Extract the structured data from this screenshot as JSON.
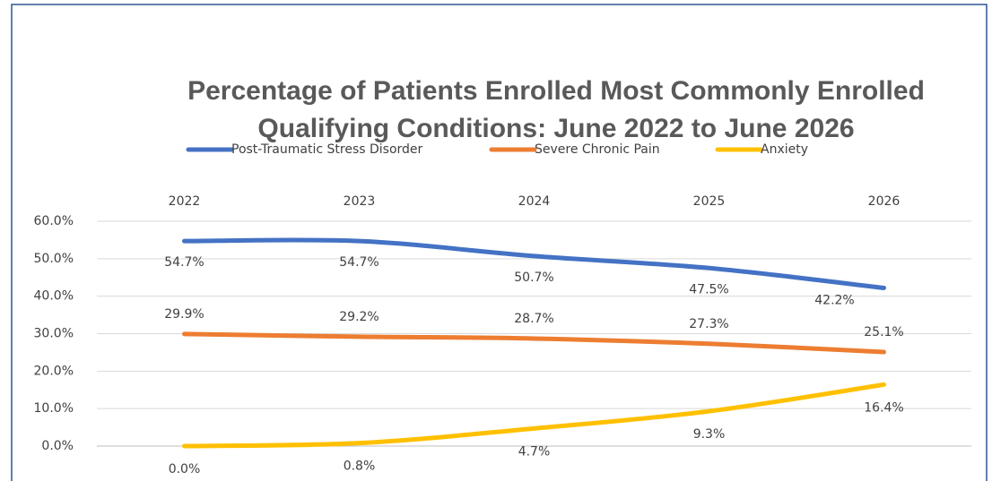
{
  "chart_data": {
    "type": "line",
    "title": "Percentage of Patients Enrolled Most Commonly Enrolled",
    "subtitle": "Qualifying Conditions:  June 2022 to June 2026",
    "categories": [
      "2022",
      "2023",
      "2024",
      "2025",
      "2026"
    ],
    "series": [
      {
        "name": "Post-Traumatic Stress Disorder",
        "color": "#4472c4",
        "values": [
          54.7,
          54.7,
          50.7,
          47.5,
          42.2
        ],
        "value_labels": [
          "54.7%",
          "54.7%",
          "50.7%",
          "47.5%",
          "42.2%"
        ]
      },
      {
        "name": "Severe Chronic Pain",
        "color": "#ed7d31",
        "values": [
          29.9,
          29.2,
          28.7,
          27.3,
          25.1
        ],
        "value_labels": [
          "29.9%",
          "29.2%",
          "28.7%",
          "27.3%",
          "25.1%"
        ]
      },
      {
        "name": "Anxiety",
        "color": "#ffc000",
        "values": [
          0.0,
          0.8,
          4.7,
          9.3,
          16.4
        ],
        "value_labels": [
          "0.0%",
          "0.8%",
          "4.7%",
          "9.3%",
          "16.4%"
        ]
      }
    ],
    "ylim": [
      0,
      60
    ],
    "yticks": [
      {
        "value": 0,
        "label": "0.0%"
      },
      {
        "value": 10,
        "label": "10.0%"
      },
      {
        "value": 20,
        "label": "20.0%"
      },
      {
        "value": 30,
        "label": "30.0%"
      },
      {
        "value": 40,
        "label": "40.0%"
      },
      {
        "value": 50,
        "label": "50.0%"
      },
      {
        "value": 60,
        "label": "60.0%"
      }
    ],
    "grid": true,
    "legend": "top"
  }
}
